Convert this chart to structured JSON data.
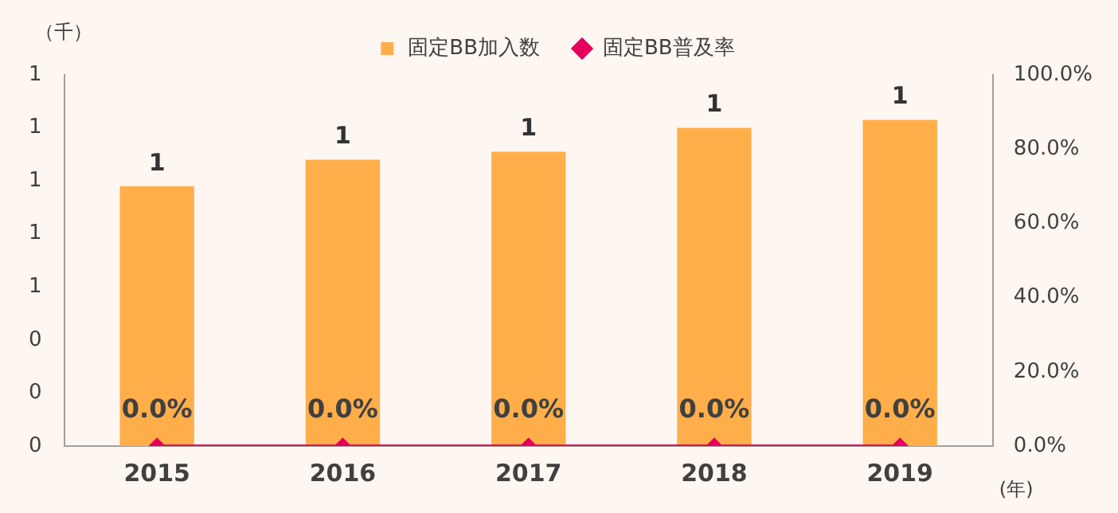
{
  "chart_data": {
    "type": "bar",
    "categories": [
      "2015",
      "2016",
      "2017",
      "2018",
      "2019"
    ],
    "ylabel": "（千）",
    "xlabel": "(年)",
    "series": [
      {
        "name": "固定BB加入数",
        "color": "#ffae4a",
        "values": [
          0.98,
          1.08,
          1.11,
          1.2,
          1.23
        ],
        "value_labels": [
          "1",
          "1",
          "1",
          "1",
          "1"
        ]
      },
      {
        "name": "固定BB普及率",
        "type": "line",
        "axis": "y2",
        "color": "#e6005c",
        "values": [
          0,
          0,
          0,
          0,
          0
        ],
        "value_labels": [
          "0.0%",
          "0.0%",
          "0.0%",
          "0.0%",
          "0.0%"
        ]
      }
    ],
    "ylim": [
      0,
      1.4
    ],
    "yticks": [
      {
        "value": 0,
        "label": "0"
      },
      {
        "value": 0.2,
        "label": "0"
      },
      {
        "value": 0.4,
        "label": "0"
      },
      {
        "value": 0.6,
        "label": "1"
      },
      {
        "value": 0.8,
        "label": "1"
      },
      {
        "value": 1.0,
        "label": "1"
      },
      {
        "value": 1.2,
        "label": "1"
      },
      {
        "value": 1.4,
        "label": "1"
      }
    ],
    "y2lim": [
      0,
      100
    ],
    "y2ticks": [
      {
        "value": 0,
        "label": "0.0%"
      },
      {
        "value": 20,
        "label": "20.0%"
      },
      {
        "value": 40,
        "label": "40.0%"
      },
      {
        "value": 60,
        "label": "60.0%"
      },
      {
        "value": 80,
        "label": "80.0%"
      },
      {
        "value": 100,
        "label": "100.0%"
      }
    ],
    "marker": "diamond",
    "grid": false,
    "legend": "top"
  }
}
